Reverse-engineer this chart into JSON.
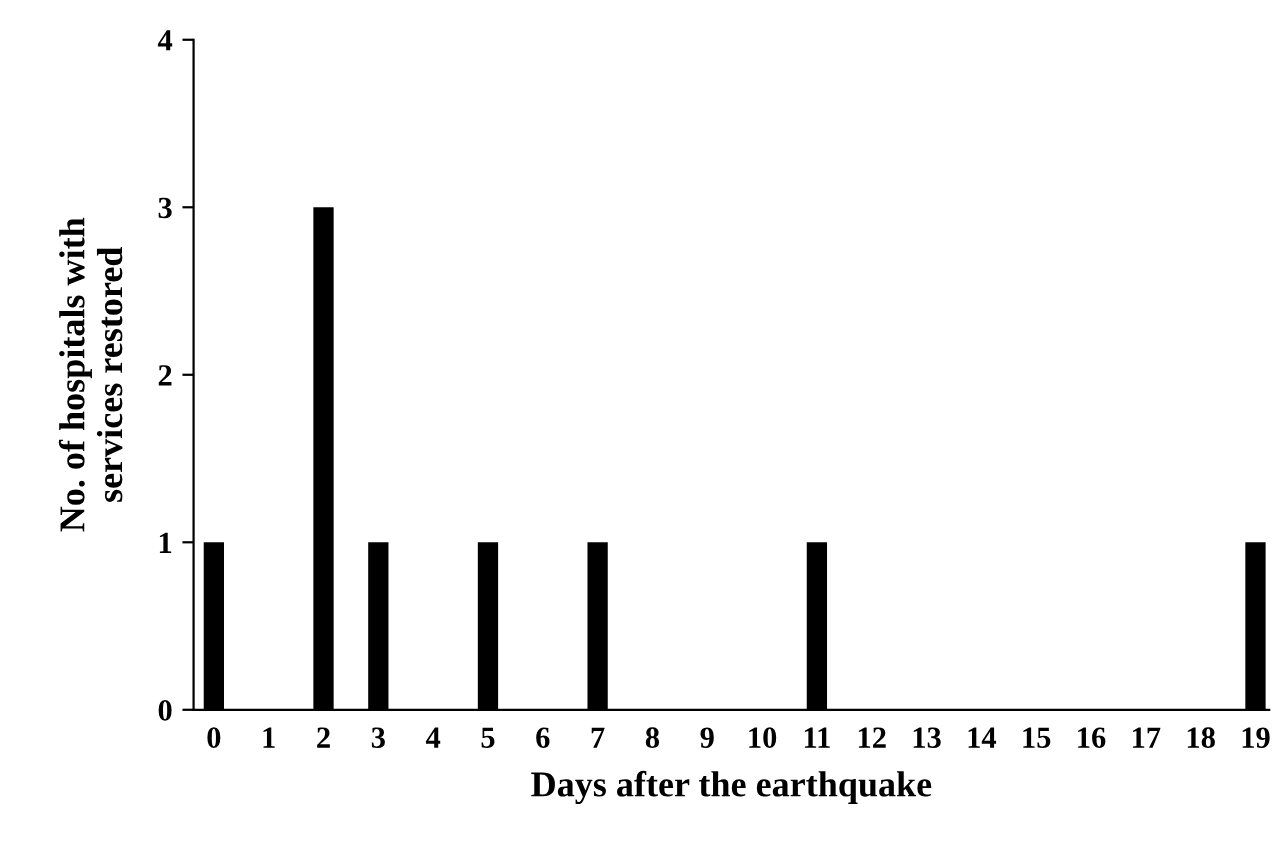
{
  "chart_data": {
    "type": "bar",
    "xlabel": "Days after the earthquake",
    "ylabel": "No. of hospitals with\nservices restored",
    "categories": [
      "0",
      "1",
      "2",
      "3",
      "4",
      "5",
      "6",
      "7",
      "8",
      "9",
      "10",
      "11",
      "12",
      "13",
      "14",
      "15",
      "16",
      "17",
      "18",
      "19"
    ],
    "values": [
      1,
      0,
      3,
      1,
      0,
      1,
      0,
      1,
      0,
      0,
      0,
      1,
      0,
      0,
      0,
      0,
      0,
      0,
      0,
      1
    ],
    "color": "#000000",
    "ylim": [
      0,
      4
    ],
    "yticks": [
      0,
      1,
      2,
      3,
      4
    ],
    "grid": false,
    "legend": false
  }
}
